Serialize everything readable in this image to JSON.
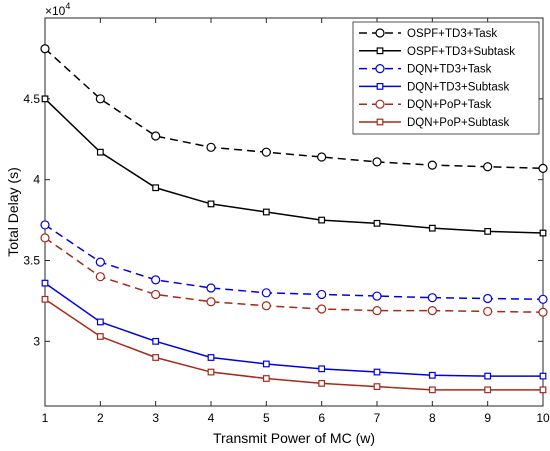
{
  "chart_data": {
    "type": "line",
    "title": "",
    "xlabel": "Transmit Power of MC (w)",
    "ylabel": "Total Delay (s)",
    "y_multiplier": {
      "base": "×10",
      "exponent": "4"
    },
    "xlim": [
      1,
      10
    ],
    "ylim": [
      2.6,
      5.0
    ],
    "x_ticks": [
      1,
      2,
      3,
      4,
      5,
      6,
      7,
      8,
      9,
      10
    ],
    "y_ticks": [
      3,
      3.5,
      4,
      4.5
    ],
    "grid": false,
    "legend_position": "top-right",
    "x": [
      1,
      2,
      3,
      4,
      5,
      6,
      7,
      8,
      9,
      10
    ],
    "series": [
      {
        "name": "OSPF+TD3+Task",
        "color": "#000000",
        "dash": "dashed",
        "marker": "circle",
        "values": [
          4.81,
          4.5,
          4.27,
          4.2,
          4.17,
          4.14,
          4.11,
          4.09,
          4.08,
          4.07
        ]
      },
      {
        "name": "OSPF+TD3+Subtask",
        "color": "#000000",
        "dash": "solid",
        "marker": "square",
        "values": [
          4.5,
          4.17,
          3.95,
          3.85,
          3.8,
          3.75,
          3.73,
          3.7,
          3.68,
          3.67
        ]
      },
      {
        "name": "DQN+TD3+Task",
        "color": "#0000e6",
        "dash": "dashed",
        "marker": "circle",
        "values": [
          3.72,
          3.49,
          3.38,
          3.33,
          3.3,
          3.29,
          3.28,
          3.27,
          3.265,
          3.26
        ]
      },
      {
        "name": "DQN+TD3+Subtask",
        "color": "#0000e6",
        "dash": "solid",
        "marker": "square",
        "values": [
          3.36,
          3.12,
          3.0,
          2.9,
          2.86,
          2.83,
          2.81,
          2.79,
          2.785,
          2.785
        ]
      },
      {
        "name": "DQN+PoP+Task",
        "color": "#a52a1a",
        "dash": "dashed",
        "marker": "circle",
        "values": [
          3.64,
          3.4,
          3.29,
          3.245,
          3.22,
          3.2,
          3.19,
          3.19,
          3.185,
          3.18
        ]
      },
      {
        "name": "DQN+PoP+Subtask",
        "color": "#a52a1a",
        "dash": "solid",
        "marker": "square",
        "values": [
          3.26,
          3.03,
          2.9,
          2.81,
          2.77,
          2.74,
          2.72,
          2.7,
          2.7,
          2.7
        ]
      }
    ]
  }
}
